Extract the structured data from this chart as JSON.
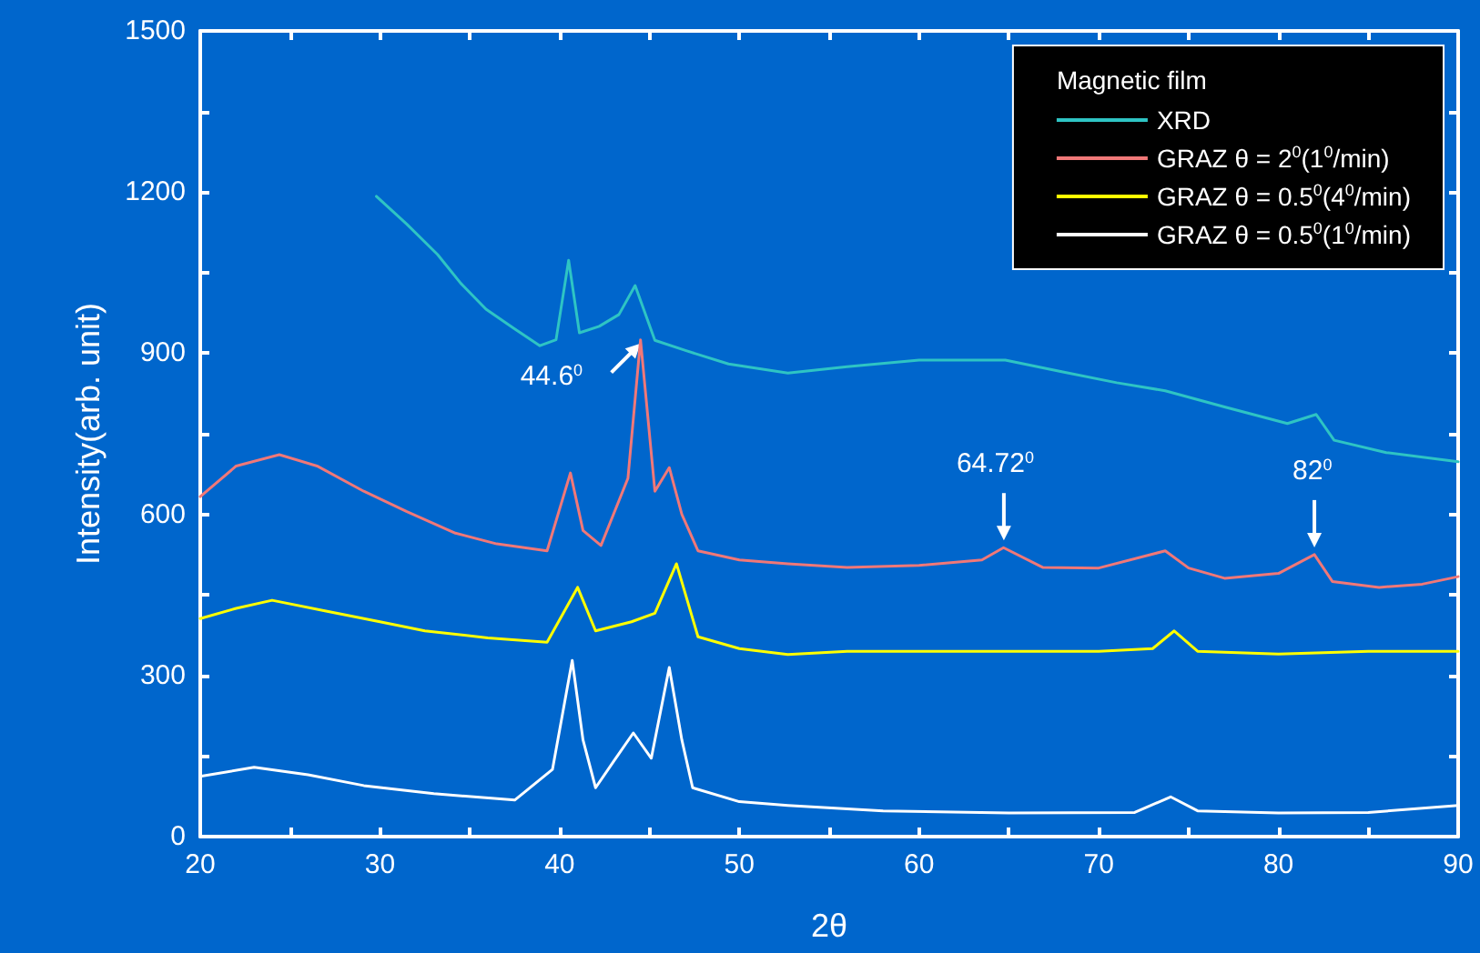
{
  "chart_data": {
    "type": "line",
    "xlabel": "2θ",
    "ylabel": "Intensity(arb. unit)",
    "legend_title": "Magnetic film",
    "legend": "top right",
    "grid": false,
    "marker": "none",
    "line_style": "solid",
    "xlim": [
      20,
      90
    ],
    "xticks": [
      20,
      {
        "value": 25,
        "label": null
      },
      30,
      {
        "value": 35,
        "label": null
      },
      40,
      {
        "value": 45,
        "label": null
      },
      50,
      {
        "value": 55,
        "label": null
      },
      60,
      {
        "value": 65,
        "label": null
      },
      70,
      {
        "value": 75,
        "label": null
      },
      80,
      {
        "value": 85,
        "label": null
      },
      90
    ],
    "ylim": [
      0,
      1500
    ],
    "yticks": [
      0,
      {
        "value": 150,
        "label": null
      },
      300,
      {
        "value": 450,
        "label": null
      },
      600,
      {
        "value": 750,
        "label": null
      },
      900,
      {
        "value": 1050,
        "label": null
      },
      1200,
      {
        "value": 1350,
        "label": null
      },
      1500
    ],
    "series": [
      {
        "name": "XRD",
        "color": "#2ec4c4",
        "x": [
          29.8,
          31.5,
          33.2,
          34.5,
          35.9,
          37.5,
          38.9,
          39.8,
          40.5,
          41.1,
          42.2,
          43.3,
          44.2,
          45.3,
          47,
          49.4,
          52.7,
          56,
          60,
          64.8,
          68,
          71,
          73.7,
          77,
          80.5,
          82.1,
          83.1,
          86,
          90
        ],
        "values": [
          1192,
          1140,
          1084,
          1030,
          982,
          945,
          914,
          925,
          1073,
          938,
          950,
          972,
          1026,
          924,
          905,
          880,
          863,
          875,
          887,
          887,
          865,
          845,
          830,
          800,
          769,
          786,
          738,
          715,
          698
        ]
      },
      {
        "name": "GRAZ θ = 2$^{0}$(1$^{0}$/min)",
        "color": "#f07878",
        "x": [
          20,
          22,
          24.4,
          26.5,
          29.1,
          31.5,
          34.2,
          36.5,
          39.3,
          40.6,
          41.3,
          42.3,
          43.8,
          44.5,
          45.3,
          46.1,
          46.8,
          47.7,
          50,
          52.7,
          56,
          60,
          63.5,
          64.7,
          66.9,
          70,
          73.7,
          75,
          77,
          80,
          82,
          83,
          85.6,
          88,
          90
        ],
        "values": [
          633,
          690,
          711,
          690,
          643,
          605,
          565,
          545,
          532,
          677,
          570,
          542,
          667,
          925,
          643,
          687,
          600,
          532,
          515,
          508,
          501,
          505,
          515,
          538,
          501,
          500,
          532,
          500,
          481,
          490,
          525,
          475,
          464,
          470,
          484
        ]
      },
      {
        "name": "GRAZ θ = 0.5$^{0}$(4$^{0}$/min)",
        "color": "#ffff00",
        "x": [
          20,
          22,
          24,
          27,
          30,
          32.5,
          36,
          39.3,
          41,
          42,
          44,
          45.3,
          46.5,
          47.7,
          50,
          52.7,
          56,
          60,
          65,
          70,
          73,
          74.2,
          75.5,
          80,
          85,
          90
        ],
        "values": [
          406,
          425,
          440,
          420,
          400,
          383,
          370,
          362,
          464,
          383,
          400,
          416,
          508,
          372,
          350,
          339,
          345,
          345,
          345,
          345,
          350,
          383,
          345,
          340,
          345,
          345
        ]
      },
      {
        "name": "GRAZ θ = 0.5$^{0}$(1$^{0}$/min)",
        "color": "#ffffff",
        "x": [
          20,
          23,
          26,
          29.1,
          33,
          37.5,
          39.6,
          40.7,
          41.3,
          42,
          43,
          44.1,
          45.1,
          46.1,
          46.8,
          47.4,
          50,
          52.7,
          58,
          65,
          72,
          74,
          75.5,
          80,
          85,
          90
        ],
        "values": [
          112,
          129,
          115,
          95,
          80,
          68,
          125,
          328,
          180,
          91,
          140,
          193,
          146,
          315,
          180,
          91,
          65,
          58,
          48,
          44,
          45,
          74,
          48,
          44,
          45,
          58
        ]
      }
    ],
    "annotations": [
      {
        "text": "44.6$^{0}$",
        "x": 44.6,
        "y": 925
      },
      {
        "text": "64.72$^{0}$",
        "x": 64.72,
        "y": 538
      },
      {
        "text": "82$^{0}$",
        "x": 82,
        "y": 525
      }
    ]
  }
}
